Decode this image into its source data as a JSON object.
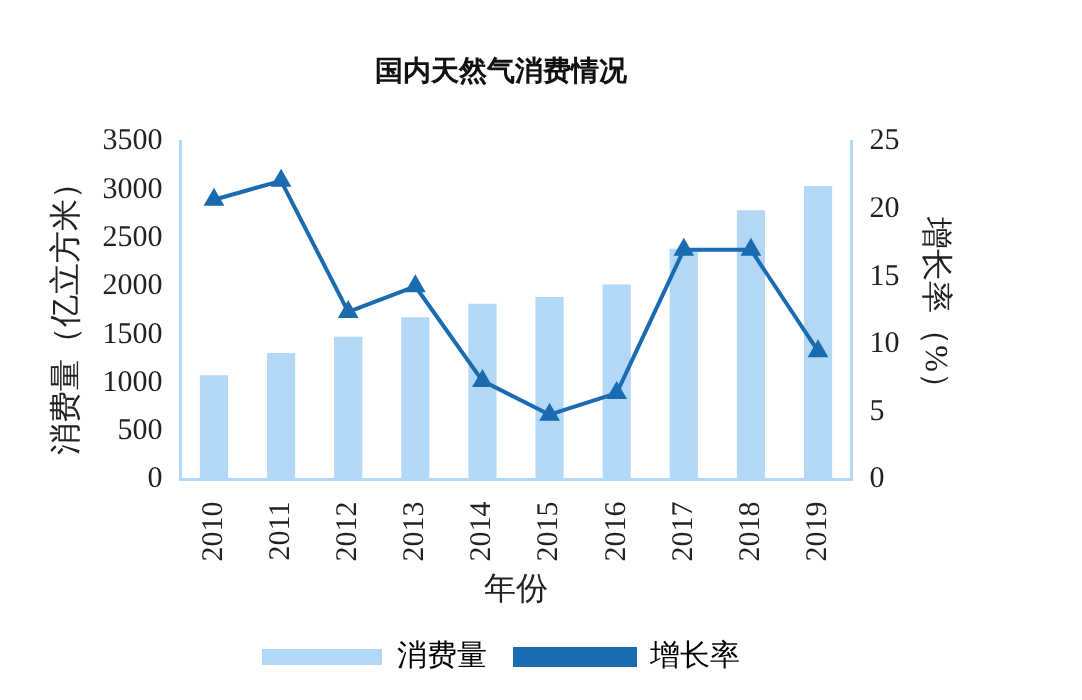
{
  "chart_data": {
    "type": "bar",
    "title": "国内天然气消费情况",
    "xlabel": "年份",
    "ylabel": "消费量（亿立方米）",
    "y2label": "增长率（%）",
    "categories": [
      "2010",
      "2011",
      "2012",
      "2013",
      "2014",
      "2015",
      "2016",
      "2017",
      "2018",
      "2019"
    ],
    "series": [
      {
        "name": "消费量",
        "color": "#b3d7f7",
        "values": [
          1080,
          1310,
          1480,
          1680,
          1820,
          1890,
          2020,
          2390,
          2790,
          3040
        ]
      },
      {
        "name": "增长率",
        "type": "line",
        "axis": "y2",
        "color": "#1a6bb0",
        "values": [
          20.7,
          22.1,
          12.4,
          14.3,
          7.3,
          4.8,
          6.4,
          17.0,
          17.0,
          9.5
        ]
      }
    ],
    "ylim": [
      0,
      3500
    ],
    "yticks": [
      0,
      500,
      1000,
      1500,
      2000,
      2500,
      3000,
      3500
    ],
    "y2lim": [
      0,
      25
    ],
    "y2ticks": [
      0,
      5,
      10,
      15,
      20,
      25
    ],
    "marker": "triangle",
    "legend": "bottom",
    "grid": false
  }
}
